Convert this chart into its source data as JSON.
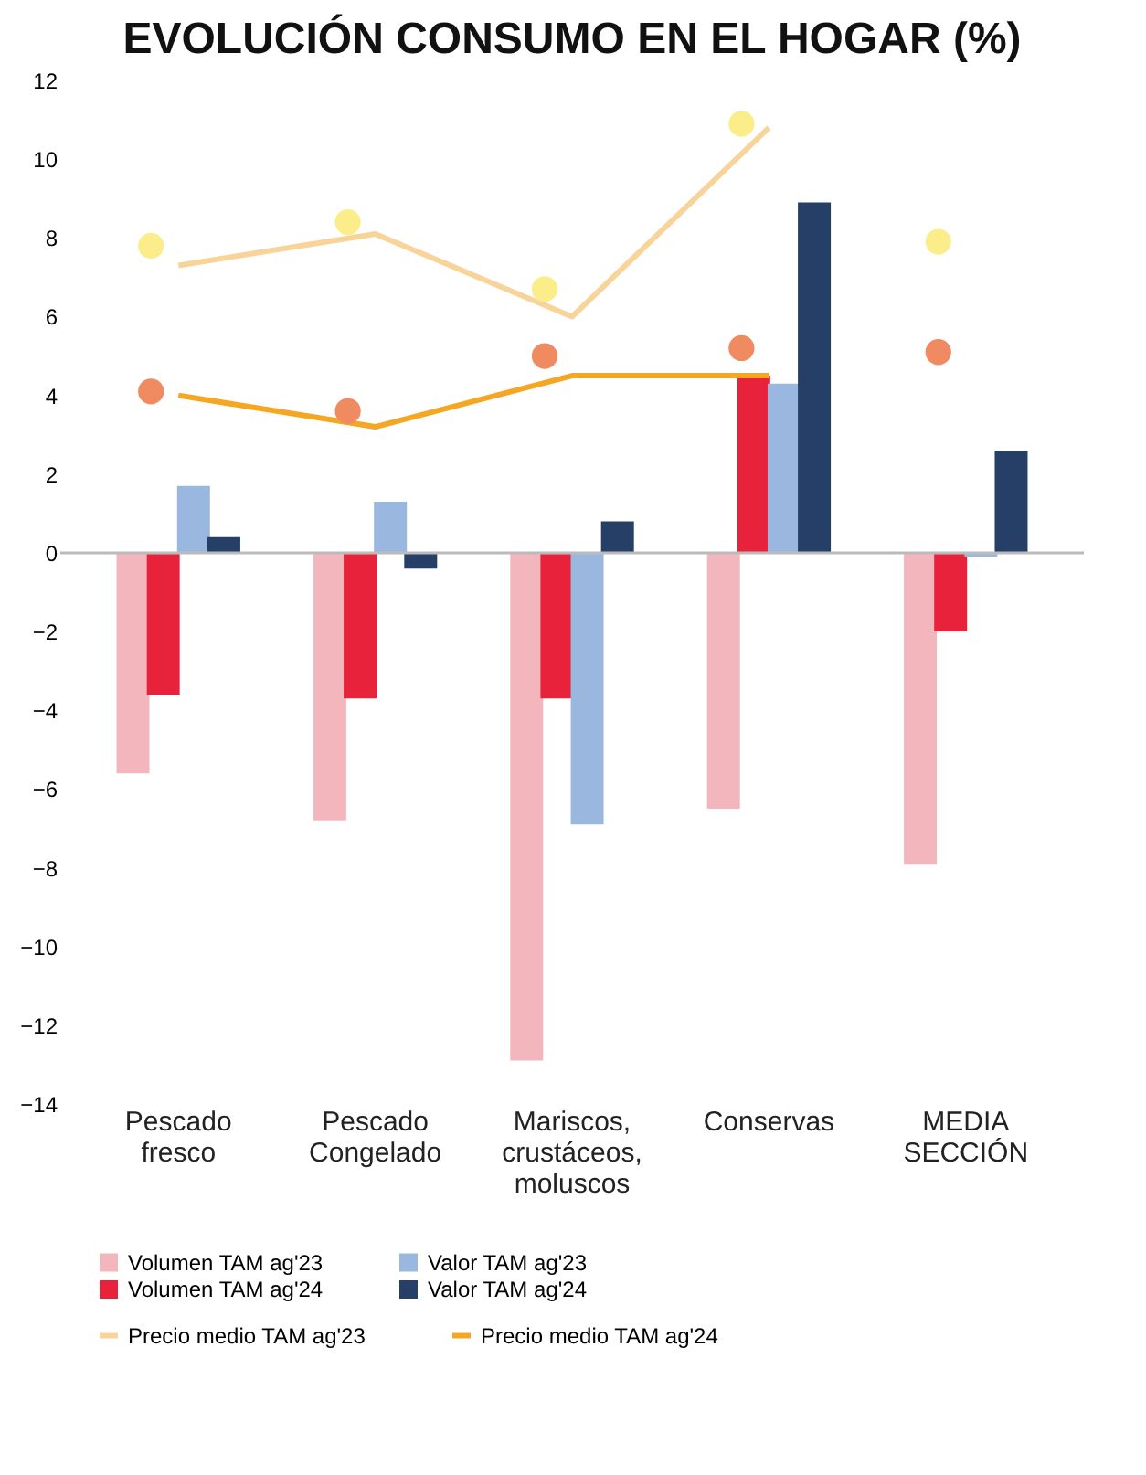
{
  "chart_data": {
    "type": "bar",
    "title": "EVOLUCIÓN CONSUMO EN EL HOGAR (%)",
    "categories": [
      "Pescado fresco",
      "Pescado Congelado",
      "Mariscos, crustáceos, moluscos",
      "Conservas",
      "MEDIA SECCIÓN"
    ],
    "series": [
      {
        "name": "Volumen TAM ag'23",
        "color": "#f4b6bd",
        "values": [
          -5.6,
          -6.8,
          -12.9,
          -6.5,
          -7.9
        ]
      },
      {
        "name": "Volumen TAM ag'24",
        "color": "#e8223a",
        "values": [
          -3.6,
          -3.7,
          -3.7,
          4.5,
          -2.0
        ]
      },
      {
        "name": "Valor TAM ag'23",
        "color": "#9ab8df",
        "values": [
          1.7,
          1.3,
          -6.9,
          4.3,
          -0.1
        ]
      },
      {
        "name": "Valor TAM ag'24",
        "color": "#253f66",
        "values": [
          0.4,
          -0.4,
          0.8,
          8.9,
          2.6
        ]
      },
      {
        "name": "Precio medio TAM ag'23",
        "type": "line",
        "color": "#f8d49a",
        "marker": "none",
        "values": [
          7.3,
          8.1,
          6.0,
          10.8,
          null
        ]
      },
      {
        "name": "Precio medio TAM ag'24",
        "type": "line",
        "color": "#f5a623",
        "marker": "none",
        "values": [
          4.0,
          3.2,
          4.5,
          4.5,
          null
        ]
      },
      {
        "type": "scatter",
        "color": "#fbee8a",
        "marker": "circle",
        "values": [
          7.8,
          8.4,
          6.7,
          10.9,
          7.9
        ]
      },
      {
        "type": "scatter",
        "color": "#f08a60",
        "marker": "circle",
        "values": [
          4.1,
          3.6,
          5.0,
          5.2,
          5.1
        ]
      }
    ],
    "ylim": [
      -14,
      12
    ],
    "yticks": [
      -14,
      -12,
      -10,
      -8,
      -6,
      -4,
      -2,
      0,
      2,
      4,
      6,
      8,
      10,
      12
    ],
    "ref_lines": [
      {
        "axis": "y",
        "value": 0
      }
    ],
    "grid": false,
    "legend": "bottom",
    "line_style": "solid"
  }
}
